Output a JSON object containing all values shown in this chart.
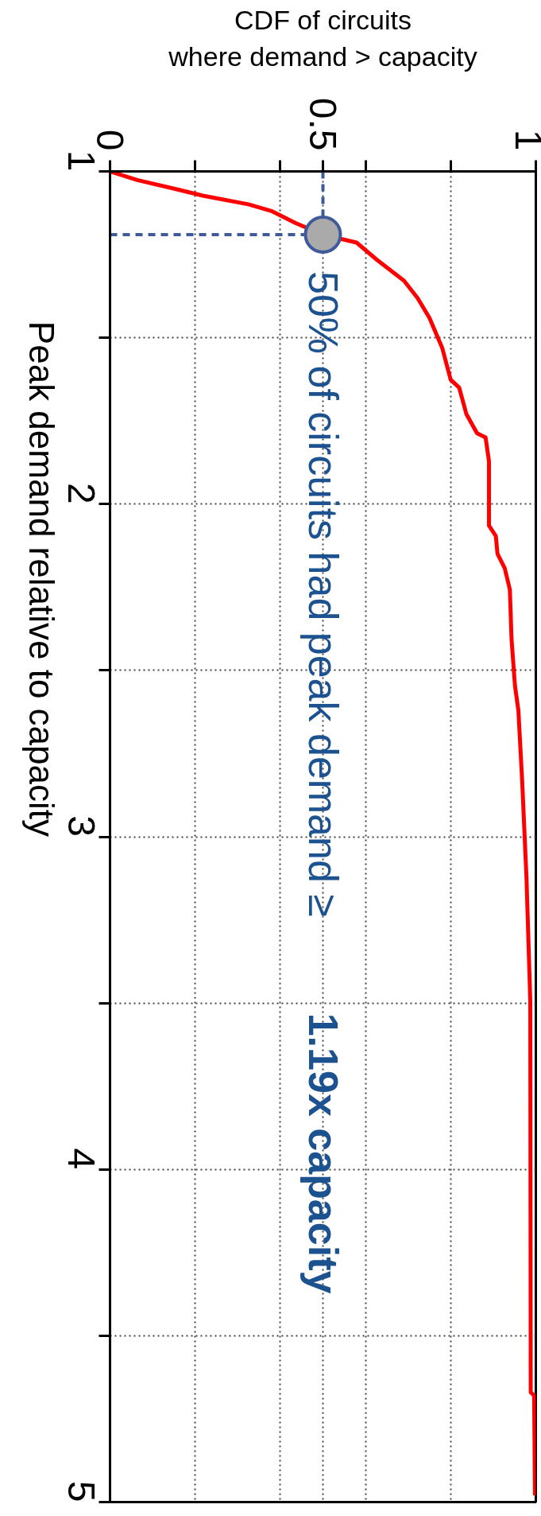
{
  "chart_data": {
    "type": "line",
    "xlabel": "CDF of circuits\nwhere demand > capacity",
    "ylabel": "Peak demand relative to capacity",
    "x": [
      0.0,
      0.064,
      0.151,
      0.218,
      0.325,
      0.381,
      0.437,
      0.5,
      0.579,
      0.627,
      0.69,
      0.722,
      0.75,
      0.78,
      0.8,
      0.82,
      0.837,
      0.862,
      0.882,
      0.89,
      0.89,
      0.906,
      0.91,
      0.927,
      0.939,
      0.943,
      0.951,
      0.959,
      0.968,
      0.978,
      0.987,
      0.988,
      0.996,
      0.998
    ],
    "series": [
      {
        "color": "#ff0000",
        "values": [
          1.0,
          1.026,
          1.052,
          1.073,
          1.099,
          1.12,
          1.156,
          1.19,
          1.214,
          1.266,
          1.328,
          1.38,
          1.44,
          1.53,
          1.626,
          1.65,
          1.73,
          1.787,
          1.8,
          1.872,
          2.065,
          2.096,
          2.15,
          2.193,
          2.257,
          2.407,
          2.546,
          2.62,
          2.835,
          3.122,
          3.494,
          4.67,
          4.68,
          4.98
        ]
      }
    ],
    "ylim": [
      5,
      1
    ],
    "yticks": [
      1,
      {
        "value": 1.5,
        "label": null
      },
      2,
      {
        "value": 2.5,
        "label": null
      },
      3,
      {
        "value": 3.5,
        "label": null
      },
      4,
      {
        "value": 4.5,
        "label": null
      },
      5
    ],
    "xlim": [
      0,
      1
    ],
    "xticks": [
      0,
      {
        "value": 0.2,
        "label": null
      },
      {
        "value": 0.4,
        "label": null
      },
      0.5,
      {
        "value": 0.6,
        "label": null
      },
      {
        "value": 0.8,
        "label": null
      },
      1
    ],
    "grid": true,
    "line_style": "solid",
    "marker": "none",
    "annotations": [
      {
        "text": "50% of circuits had peak demand ≥",
        "x": 0.5,
        "y": 1.19
      },
      "1.19x capacity"
    ]
  }
}
